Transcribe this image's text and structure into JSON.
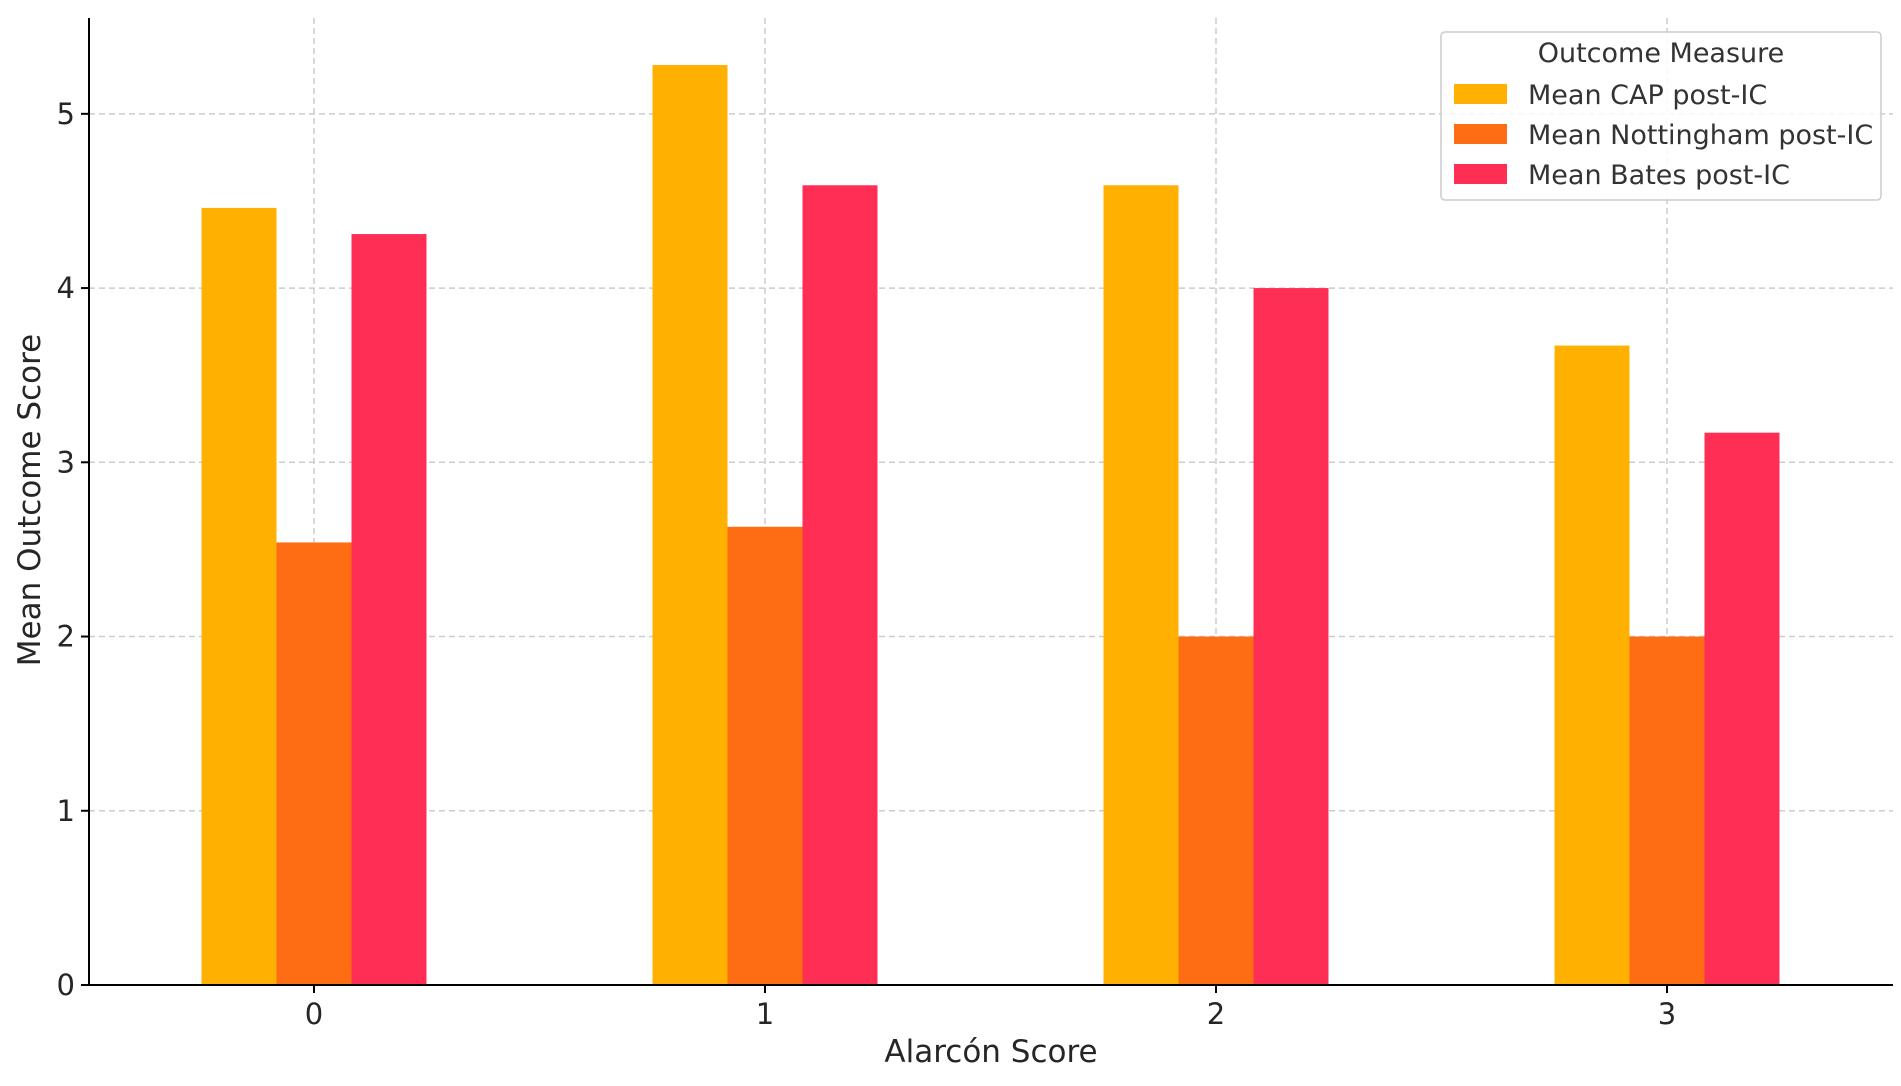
{
  "chart_data": {
    "type": "bar",
    "title": "",
    "xlabel": "Alarcón Score",
    "ylabel": "Mean Outcome Score",
    "categories": [
      "0",
      "1",
      "2",
      "3"
    ],
    "yticks": [
      "0",
      "1",
      "2",
      "3",
      "4",
      "5"
    ],
    "ylim": [
      0,
      5.55
    ],
    "grid": true,
    "legend": {
      "title": "Outcome Measure",
      "placement": "top-right"
    },
    "series": [
      {
        "name": "Mean CAP post-IC",
        "color": "#FFB000",
        "values": [
          4.46,
          5.28,
          4.59,
          3.67
        ]
      },
      {
        "name": "Mean Nottingham post-IC",
        "color": "#FE6C13",
        "values": [
          2.54,
          2.63,
          2.0,
          2.0
        ]
      },
      {
        "name": "Mean Bates post-IC",
        "color": "#FF2E55",
        "values": [
          4.31,
          4.59,
          4.0,
          3.17
        ]
      }
    ]
  }
}
